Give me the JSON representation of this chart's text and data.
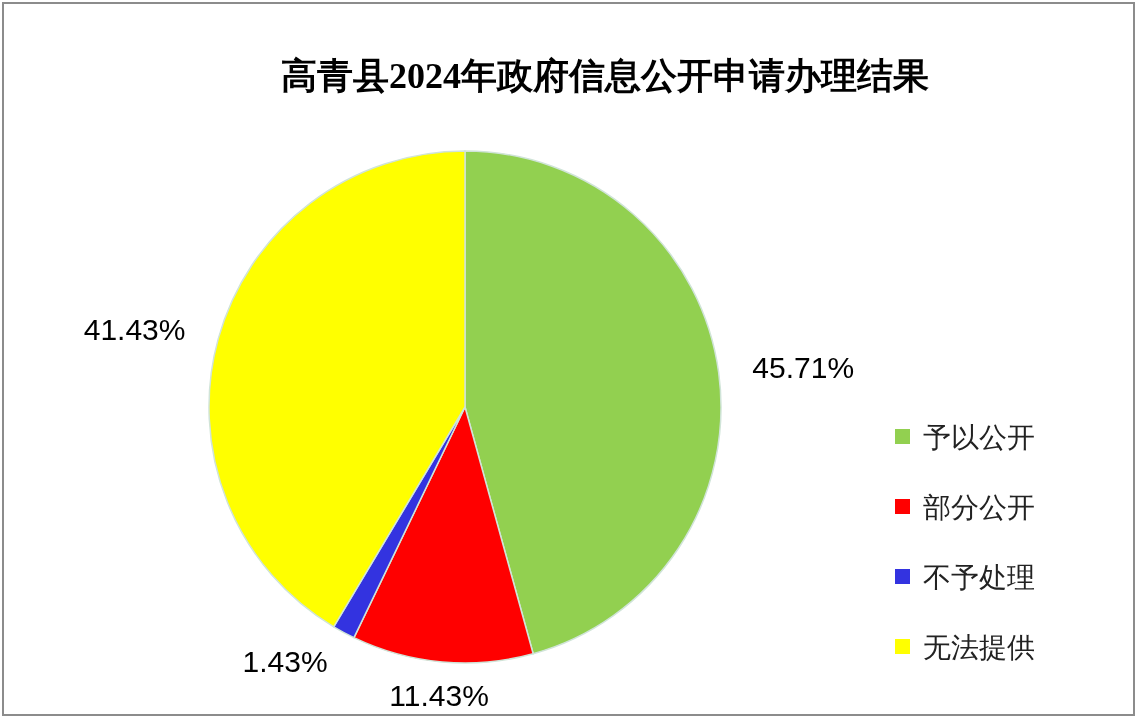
{
  "chart_data": {
    "type": "pie",
    "title": "高青县2024年政府信息公开申请办理结果",
    "categories": [
      "予以公开",
      "部分公开",
      "不予处理",
      "无法提供"
    ],
    "values": [
      45.71,
      11.43,
      1.43,
      41.43
    ],
    "colors": [
      "#92d050",
      "#ff0000",
      "#3333e0",
      "#ffff00"
    ],
    "value_labels": [
      "45.71%",
      "11.43%",
      "1.43%",
      "41.43%"
    ],
    "legend": "right"
  }
}
